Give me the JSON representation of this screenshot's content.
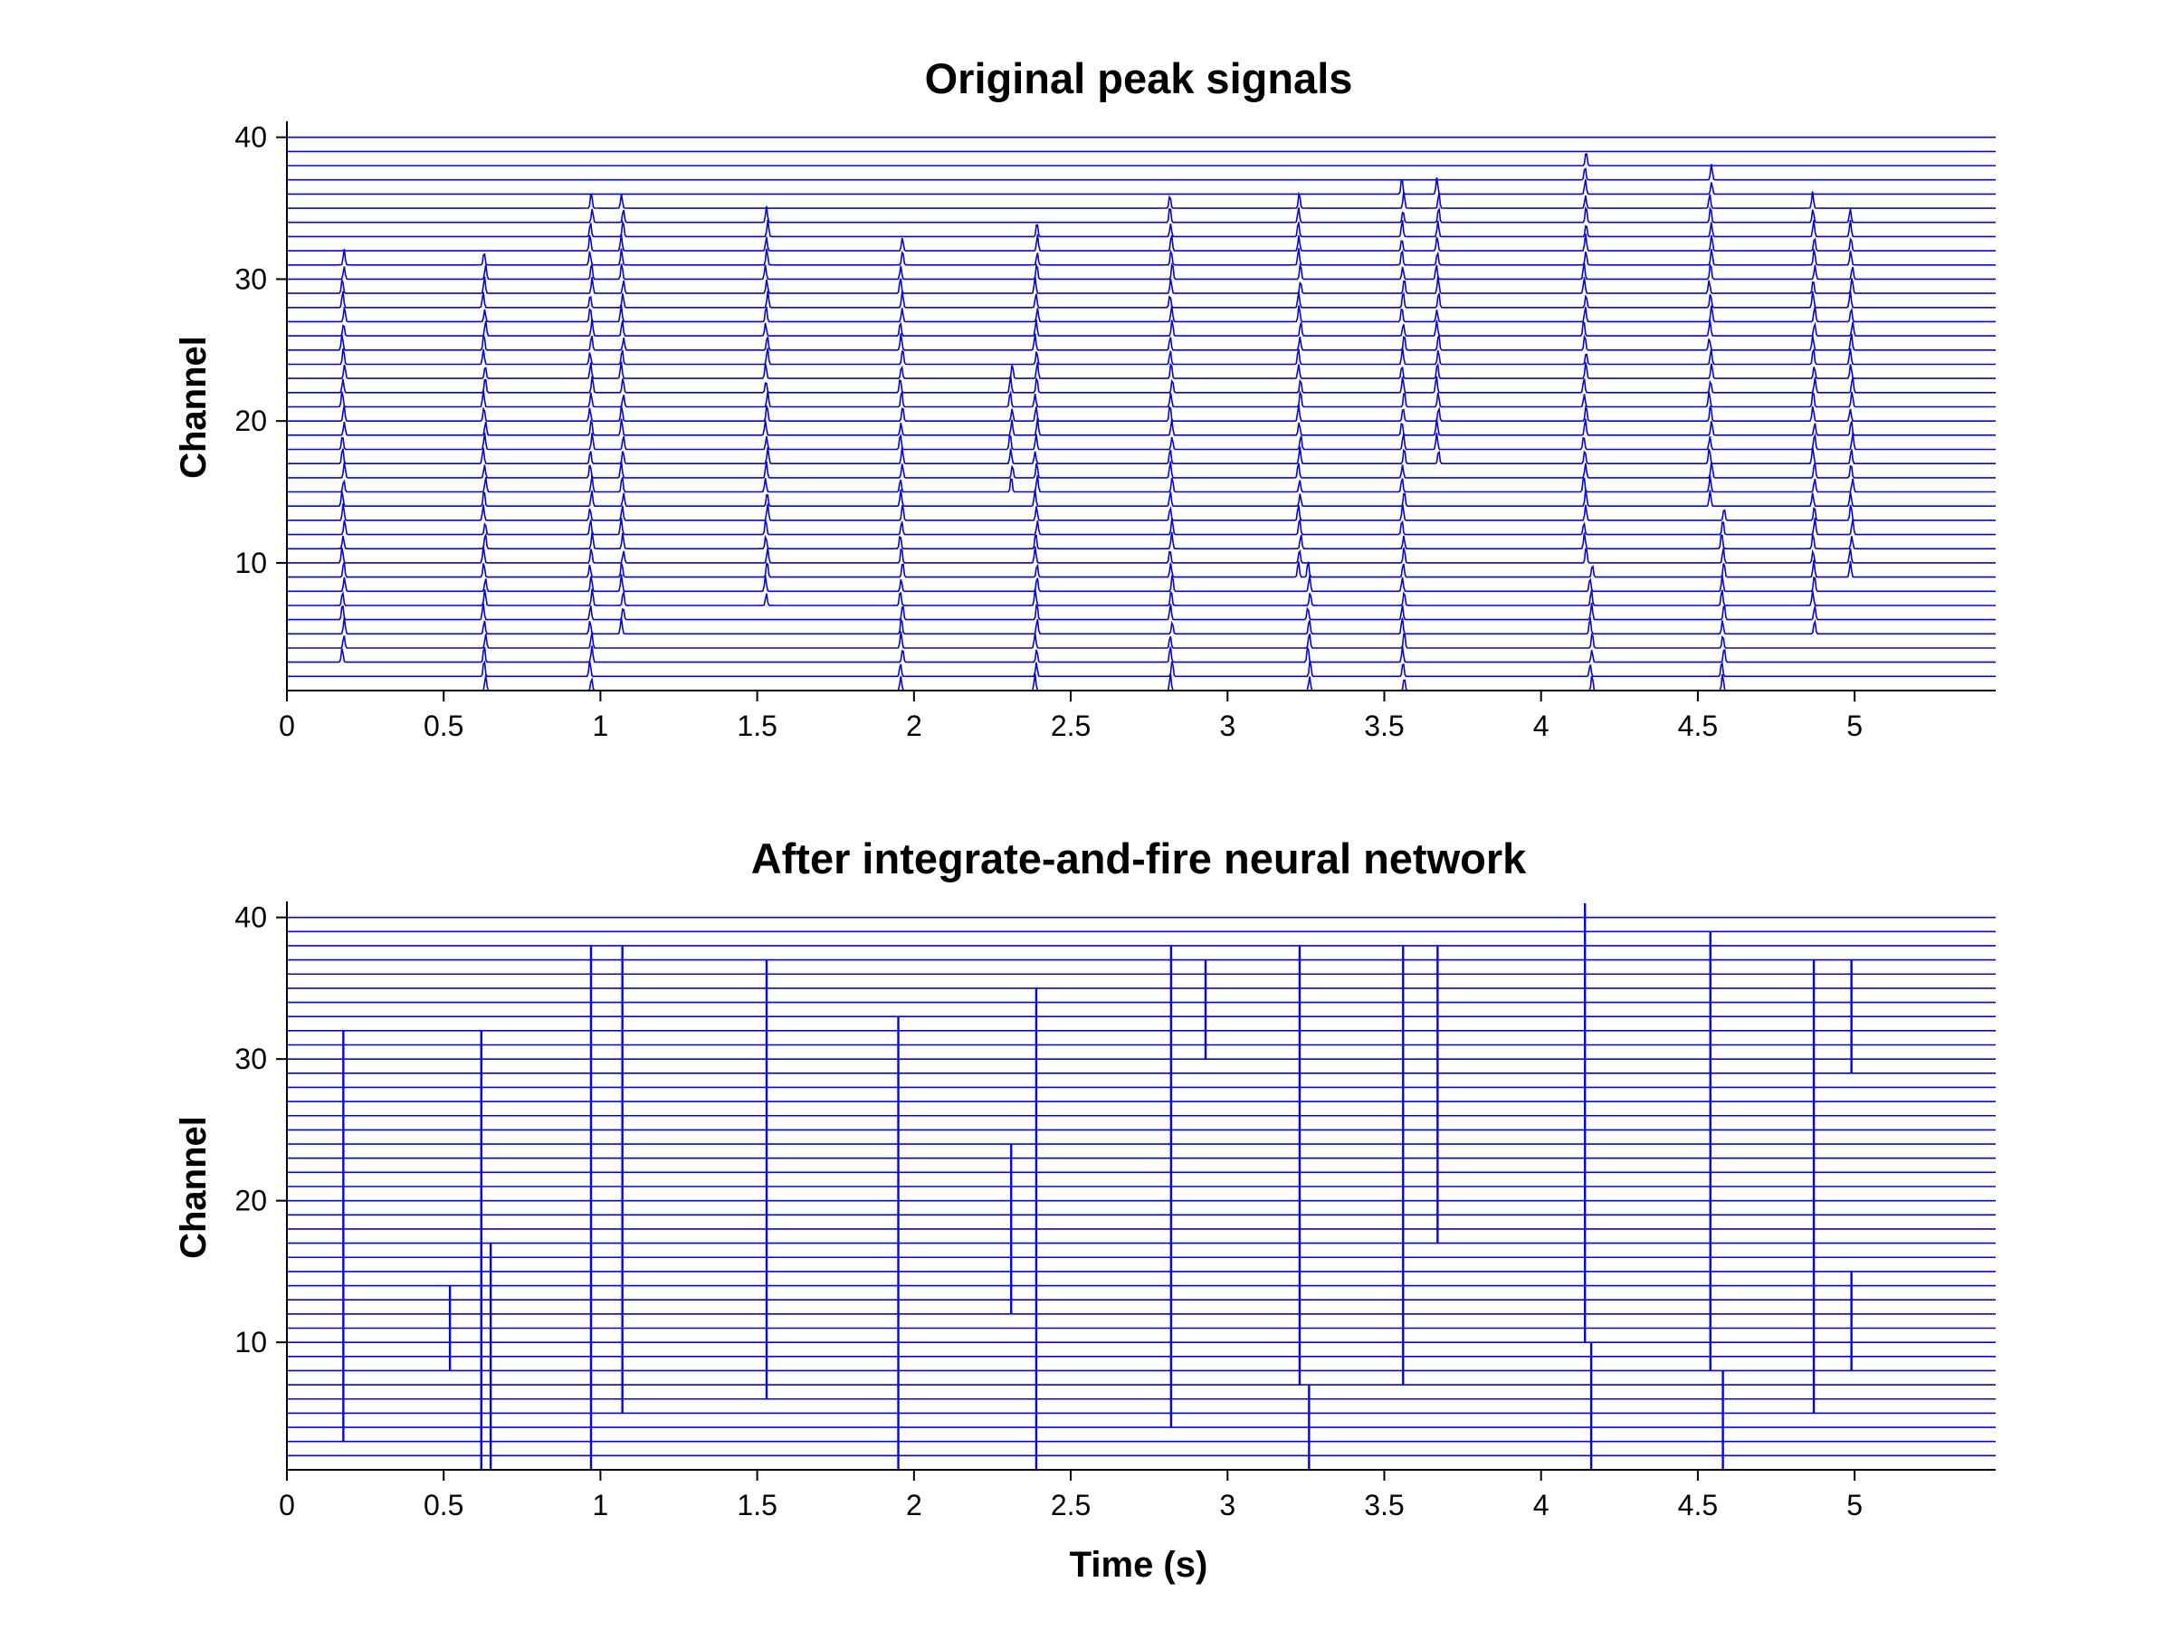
{
  "chart_data": [
    {
      "type": "line",
      "title": "Original peak signals",
      "xlabel": "",
      "ylabel": "Channel",
      "xlim": [
        0,
        5.45
      ],
      "ylim": [
        1,
        41
      ],
      "xticks": [
        0,
        0.5,
        1,
        1.5,
        2,
        2.5,
        3,
        3.5,
        4,
        4.5,
        5
      ],
      "xtick_labels": [
        "0",
        "0.5",
        "1",
        "1.5",
        "2",
        "2.5",
        "3",
        "3.5",
        "4",
        "4.5",
        "5"
      ],
      "yticks": [
        10,
        20,
        30,
        40
      ],
      "ytick_labels": [
        "10",
        "20",
        "30",
        "40"
      ],
      "channels": 40,
      "line_color": "#0000ff",
      "peak_events": [
        {
          "t": 0.18,
          "ch_from": 3,
          "ch_to": 31
        },
        {
          "t": 0.63,
          "ch_from": 1,
          "ch_to": 31
        },
        {
          "t": 0.97,
          "ch_from": 1,
          "ch_to": 35
        },
        {
          "t": 1.07,
          "ch_from": 5,
          "ch_to": 35
        },
        {
          "t": 1.53,
          "ch_from": 7,
          "ch_to": 34
        },
        {
          "t": 1.96,
          "ch_from": 1,
          "ch_to": 32
        },
        {
          "t": 2.31,
          "ch_from": 15,
          "ch_to": 23
        },
        {
          "t": 2.39,
          "ch_from": 1,
          "ch_to": 33
        },
        {
          "t": 2.82,
          "ch_from": 1,
          "ch_to": 35
        },
        {
          "t": 3.23,
          "ch_from": 9,
          "ch_to": 35
        },
        {
          "t": 3.26,
          "ch_from": 1,
          "ch_to": 9
        },
        {
          "t": 3.56,
          "ch_from": 1,
          "ch_to": 36
        },
        {
          "t": 3.67,
          "ch_from": 17,
          "ch_to": 36
        },
        {
          "t": 4.14,
          "ch_from": 10,
          "ch_to": 38
        },
        {
          "t": 4.16,
          "ch_from": 1,
          "ch_to": 9
        },
        {
          "t": 4.54,
          "ch_from": 14,
          "ch_to": 37
        },
        {
          "t": 4.58,
          "ch_from": 1,
          "ch_to": 13
        },
        {
          "t": 4.87,
          "ch_from": 5,
          "ch_to": 35
        },
        {
          "t": 4.99,
          "ch_from": 9,
          "ch_to": 34
        }
      ]
    },
    {
      "type": "line",
      "title": "After integrate-and-fire neural network",
      "xlabel": "Time (s)",
      "ylabel": "Channel",
      "xlim": [
        0,
        5.45
      ],
      "ylim": [
        1,
        41
      ],
      "xticks": [
        0,
        0.5,
        1,
        1.5,
        2,
        2.5,
        3,
        3.5,
        4,
        4.5,
        5
      ],
      "xtick_labels": [
        "0",
        "0.5",
        "1",
        "1.5",
        "2",
        "2.5",
        "3",
        "3.5",
        "4",
        "4.5",
        "5"
      ],
      "yticks": [
        10,
        20,
        30,
        40
      ],
      "ytick_labels": [
        "10",
        "20",
        "30",
        "40"
      ],
      "channels": 40,
      "line_color": "#0000ff",
      "spike_segments": [
        {
          "t": 0.18,
          "ch_from": 3,
          "ch_to": 32
        },
        {
          "t": 0.52,
          "ch_from": 8,
          "ch_to": 14
        },
        {
          "t": 0.62,
          "ch_from": 1,
          "ch_to": 32
        },
        {
          "t": 0.65,
          "ch_from": 1,
          "ch_to": 17
        },
        {
          "t": 0.97,
          "ch_from": 1,
          "ch_to": 38
        },
        {
          "t": 1.07,
          "ch_from": 5,
          "ch_to": 38
        },
        {
          "t": 1.53,
          "ch_from": 6,
          "ch_to": 37
        },
        {
          "t": 1.95,
          "ch_from": 1,
          "ch_to": 33
        },
        {
          "t": 2.31,
          "ch_from": 12,
          "ch_to": 24
        },
        {
          "t": 2.39,
          "ch_from": 1,
          "ch_to": 35
        },
        {
          "t": 2.82,
          "ch_from": 4,
          "ch_to": 38
        },
        {
          "t": 2.93,
          "ch_from": 30,
          "ch_to": 37
        },
        {
          "t": 3.23,
          "ch_from": 7,
          "ch_to": 38
        },
        {
          "t": 3.26,
          "ch_from": 1,
          "ch_to": 7
        },
        {
          "t": 3.56,
          "ch_from": 7,
          "ch_to": 38
        },
        {
          "t": 3.67,
          "ch_from": 17,
          "ch_to": 38
        },
        {
          "t": 4.14,
          "ch_from": 10,
          "ch_to": 41
        },
        {
          "t": 4.16,
          "ch_from": 1,
          "ch_to": 10
        },
        {
          "t": 4.54,
          "ch_from": 8,
          "ch_to": 39
        },
        {
          "t": 4.58,
          "ch_from": 1,
          "ch_to": 8
        },
        {
          "t": 4.87,
          "ch_from": 5,
          "ch_to": 37
        },
        {
          "t": 4.99,
          "ch_from": 8,
          "ch_to": 15
        },
        {
          "t": 4.99,
          "ch_from": 29,
          "ch_to": 37
        }
      ]
    }
  ]
}
